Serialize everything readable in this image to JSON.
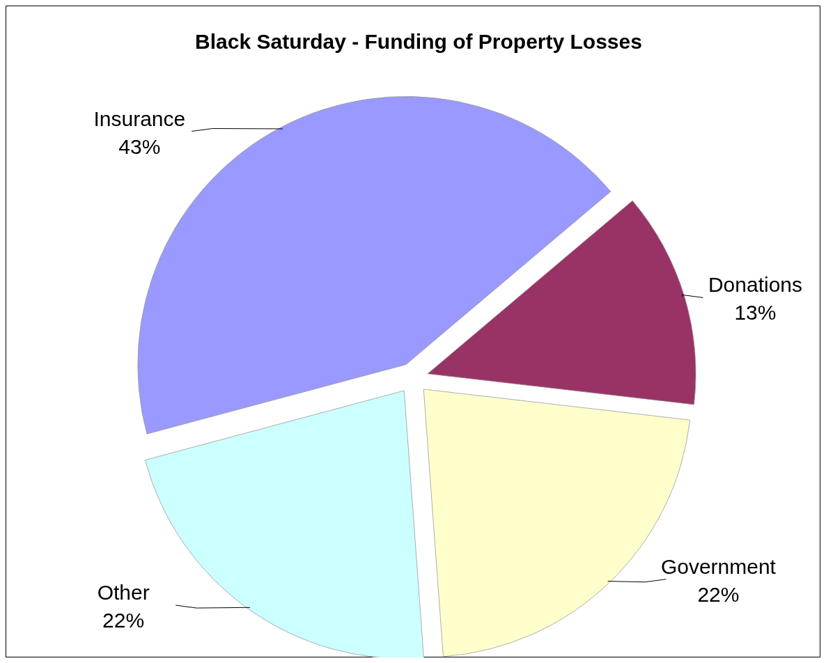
{
  "chart_data": {
    "type": "pie",
    "title": "Black Saturday - Funding of Property Losses",
    "categories": [
      "Insurance",
      "Donations",
      "Government",
      "Other"
    ],
    "values": [
      43,
      13,
      22,
      22
    ],
    "colors": [
      "#9999ff",
      "#993366",
      "#ffffcc",
      "#ccffff"
    ],
    "value_labels": [
      "43%",
      "13%",
      "22%",
      "22%"
    ]
  }
}
